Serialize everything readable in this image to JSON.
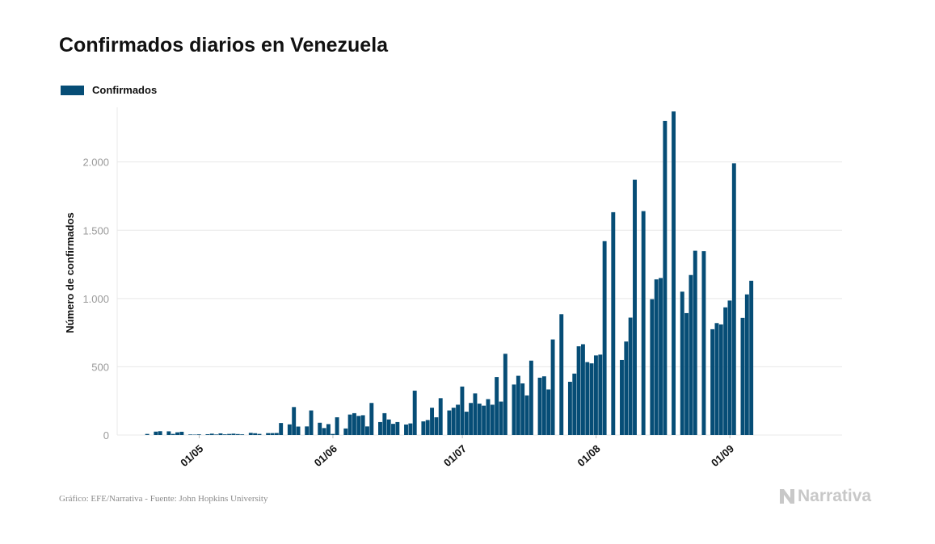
{
  "title": "Confirmados diarios en Venezuela",
  "footer": "Gráfico: EFE/Narrativa - Fuente: John Hopkins University",
  "logo": {
    "text": "Narrativa",
    "icon": "narrativa-n-logo-icon"
  },
  "colors": {
    "bar": "#064d76",
    "grid": "#e8e8e8",
    "tick": "#9a9a9a",
    "logo": "#c8c8c8"
  },
  "chart_data": {
    "type": "bar",
    "title": "Confirmados diarios en Venezuela",
    "ylabel": "Número de confirmados",
    "xlabel": "",
    "ylim": [
      0,
      2400
    ],
    "yticks": [
      0,
      500,
      1000,
      1500,
      2000
    ],
    "ytick_labels": [
      "0",
      "500",
      "1.000",
      "1.500",
      "2.000"
    ],
    "xtick_labels": [
      "01/05",
      "01/06",
      "01/07",
      "01/08",
      "01/09"
    ],
    "xtick_dates": [
      "2020-05-01",
      "2020-06-01",
      "2020-07-01",
      "2020-08-01",
      "2020-09-01"
    ],
    "grid": "horizontal",
    "legend_position": "top-left",
    "series": [
      {
        "name": "Confirmados",
        "points": [
          [
            "2020-04-19",
            8
          ],
          [
            "2020-04-21",
            25
          ],
          [
            "2020-04-22",
            28
          ],
          [
            "2020-04-24",
            27
          ],
          [
            "2020-04-25",
            8
          ],
          [
            "2020-04-26",
            20
          ],
          [
            "2020-04-27",
            24
          ],
          [
            "2020-04-29",
            4
          ],
          [
            "2020-04-30",
            3
          ],
          [
            "2020-05-01",
            5
          ],
          [
            "2020-05-03",
            6
          ],
          [
            "2020-05-04",
            10
          ],
          [
            "2020-05-05",
            4
          ],
          [
            "2020-05-06",
            12
          ],
          [
            "2020-05-07",
            5
          ],
          [
            "2020-05-08",
            8
          ],
          [
            "2020-05-09",
            10
          ],
          [
            "2020-05-10",
            7
          ],
          [
            "2020-05-11",
            5
          ],
          [
            "2020-05-13",
            16
          ],
          [
            "2020-05-14",
            13
          ],
          [
            "2020-05-15",
            8
          ],
          [
            "2020-05-17",
            14
          ],
          [
            "2020-05-18",
            14
          ],
          [
            "2020-05-19",
            15
          ],
          [
            "2020-05-20",
            88
          ],
          [
            "2020-05-22",
            78
          ],
          [
            "2020-05-23",
            205
          ],
          [
            "2020-05-24",
            62
          ],
          [
            "2020-05-26",
            63
          ],
          [
            "2020-05-27",
            180
          ],
          [
            "2020-05-29",
            90
          ],
          [
            "2020-05-30",
            51
          ],
          [
            "2020-05-31",
            80
          ],
          [
            "2020-06-01",
            8
          ],
          [
            "2020-06-02",
            130
          ],
          [
            "2020-06-04",
            48
          ],
          [
            "2020-06-05",
            150
          ],
          [
            "2020-06-06",
            160
          ],
          [
            "2020-06-07",
            140
          ],
          [
            "2020-06-08",
            145
          ],
          [
            "2020-06-09",
            63
          ],
          [
            "2020-06-10",
            235
          ],
          [
            "2020-06-12",
            95
          ],
          [
            "2020-06-13",
            160
          ],
          [
            "2020-06-14",
            114
          ],
          [
            "2020-06-15",
            82
          ],
          [
            "2020-06-16",
            95
          ],
          [
            "2020-06-18",
            77
          ],
          [
            "2020-06-19",
            85
          ],
          [
            "2020-06-20",
            325
          ],
          [
            "2020-06-22",
            100
          ],
          [
            "2020-06-23",
            110
          ],
          [
            "2020-06-24",
            200
          ],
          [
            "2020-06-25",
            130
          ],
          [
            "2020-06-26",
            270
          ],
          [
            "2020-06-28",
            180
          ],
          [
            "2020-06-29",
            200
          ],
          [
            "2020-06-30",
            222
          ],
          [
            "2020-07-01",
            355
          ],
          [
            "2020-07-02",
            171
          ],
          [
            "2020-07-03",
            235
          ],
          [
            "2020-07-04",
            305
          ],
          [
            "2020-07-05",
            230
          ],
          [
            "2020-07-06",
            215
          ],
          [
            "2020-07-07",
            263
          ],
          [
            "2020-07-08",
            222
          ],
          [
            "2020-07-09",
            425
          ],
          [
            "2020-07-10",
            245
          ],
          [
            "2020-07-11",
            595
          ],
          [
            "2020-07-13",
            370
          ],
          [
            "2020-07-14",
            434
          ],
          [
            "2020-07-15",
            378
          ],
          [
            "2020-07-16",
            290
          ],
          [
            "2020-07-17",
            545
          ],
          [
            "2020-07-19",
            420
          ],
          [
            "2020-07-20",
            430
          ],
          [
            "2020-07-21",
            334
          ],
          [
            "2020-07-22",
            700
          ],
          [
            "2020-07-24",
            885
          ],
          [
            "2020-07-26",
            390
          ],
          [
            "2020-07-27",
            450
          ],
          [
            "2020-07-28",
            650
          ],
          [
            "2020-07-29",
            665
          ],
          [
            "2020-07-30",
            534
          ],
          [
            "2020-07-31",
            525
          ],
          [
            "2020-08-01",
            583
          ],
          [
            "2020-08-02",
            589
          ],
          [
            "2020-08-03",
            1420
          ],
          [
            "2020-08-05",
            1632
          ],
          [
            "2020-08-07",
            550
          ],
          [
            "2020-08-08",
            685
          ],
          [
            "2020-08-09",
            860
          ],
          [
            "2020-08-10",
            1870
          ],
          [
            "2020-08-12",
            1640
          ],
          [
            "2020-08-14",
            995
          ],
          [
            "2020-08-15",
            1140
          ],
          [
            "2020-08-16",
            1150
          ],
          [
            "2020-08-17",
            2300
          ],
          [
            "2020-08-19",
            2370
          ],
          [
            "2020-08-21",
            1050
          ],
          [
            "2020-08-22",
            893
          ],
          [
            "2020-08-23",
            1172
          ],
          [
            "2020-08-24",
            1350
          ],
          [
            "2020-08-26",
            1347
          ],
          [
            "2020-08-28",
            775
          ],
          [
            "2020-08-29",
            820
          ],
          [
            "2020-08-30",
            810
          ],
          [
            "2020-08-31",
            935
          ],
          [
            "2020-09-01",
            985
          ],
          [
            "2020-09-02",
            1990
          ],
          [
            "2020-09-04",
            858
          ],
          [
            "2020-09-05",
            1030
          ],
          [
            "2020-09-06",
            1130
          ]
        ]
      }
    ]
  }
}
